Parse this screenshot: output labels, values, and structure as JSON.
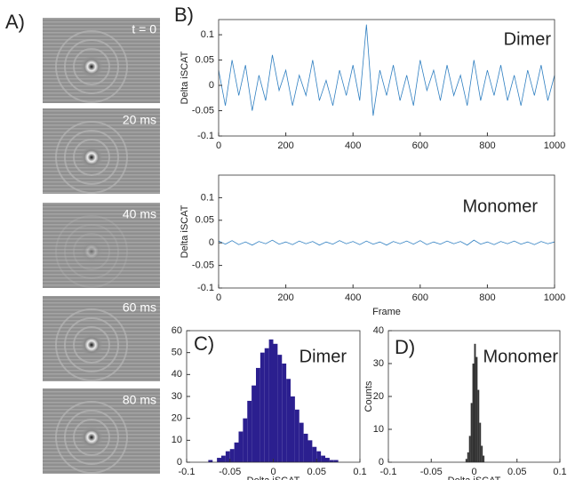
{
  "panel_a": {
    "label": "A)",
    "frames": [
      "t = 0",
      "20 ms",
      "40 ms",
      "60 ms",
      "80 ms"
    ]
  },
  "chart_data": [
    {
      "type": "line",
      "panel_label": "B)",
      "annotation": "Dimer",
      "y_label": "Delta iSCAT",
      "color": "#2f7fc1",
      "x": [
        0,
        20,
        40,
        60,
        80,
        100,
        120,
        140,
        160,
        180,
        200,
        220,
        240,
        260,
        280,
        300,
        320,
        340,
        360,
        380,
        400,
        420,
        440,
        460,
        480,
        500,
        520,
        540,
        560,
        580,
        600,
        620,
        640,
        660,
        680,
        700,
        720,
        740,
        760,
        780,
        800,
        820,
        840,
        860,
        880,
        900,
        920,
        940,
        960,
        980,
        1000
      ],
      "values": [
        0.03,
        -0.04,
        0.05,
        -0.02,
        0.04,
        -0.05,
        0.02,
        -0.03,
        0.06,
        -0.01,
        0.03,
        -0.04,
        0.02,
        -0.02,
        0.05,
        -0.03,
        0.01,
        -0.04,
        0.03,
        -0.02,
        0.04,
        -0.03,
        0.12,
        -0.06,
        0.03,
        -0.02,
        0.04,
        -0.03,
        0.02,
        -0.04,
        0.05,
        -0.01,
        0.03,
        -0.03,
        0.04,
        -0.02,
        0.02,
        -0.04,
        0.05,
        -0.03,
        0.03,
        -0.02,
        0.04,
        -0.03,
        0.02,
        -0.04,
        0.03,
        -0.02,
        0.04,
        -0.03,
        0.02
      ],
      "xlim": [
        0,
        1000
      ],
      "xticks": [
        0,
        200,
        400,
        600,
        800,
        1000
      ],
      "ylim": [
        -0.1,
        0.13
      ],
      "yticks": [
        -0.1,
        -0.05,
        0,
        0.05,
        0.1
      ]
    },
    {
      "type": "line",
      "annotation": "Monomer",
      "y_label": "Delta iSCAT",
      "x_label": "Frame",
      "color": "#2f7fc1",
      "x": [
        0,
        20,
        40,
        60,
        80,
        100,
        120,
        140,
        160,
        180,
        200,
        220,
        240,
        260,
        280,
        300,
        320,
        340,
        360,
        380,
        400,
        420,
        440,
        460,
        480,
        500,
        520,
        540,
        560,
        580,
        600,
        620,
        640,
        660,
        680,
        700,
        720,
        740,
        760,
        780,
        800,
        820,
        840,
        860,
        880,
        900,
        920,
        940,
        960,
        980,
        1000
      ],
      "values": [
        0.004,
        -0.003,
        0.005,
        -0.004,
        0.002,
        -0.005,
        0.003,
        -0.002,
        0.006,
        -0.003,
        0.002,
        -0.004,
        0.004,
        -0.002,
        0.003,
        -0.005,
        0.002,
        -0.003,
        0.005,
        -0.002,
        0.003,
        -0.004,
        0.004,
        -0.003,
        0.002,
        -0.005,
        0.003,
        -0.002,
        0.004,
        -0.003,
        0.005,
        -0.004,
        0.002,
        -0.003,
        0.004,
        -0.002,
        0.003,
        -0.005,
        0.006,
        -0.003,
        0.002,
        -0.004,
        0.003,
        -0.002,
        0.004,
        -0.003,
        0.002,
        -0.004,
        0.003,
        -0.002,
        0.002
      ],
      "xlim": [
        0,
        1000
      ],
      "xticks": [
        0,
        200,
        400,
        600,
        800,
        1000
      ],
      "ylim": [
        -0.1,
        0.15
      ],
      "yticks": [
        -0.1,
        -0.05,
        0,
        0.05,
        0.1
      ]
    },
    {
      "type": "histogram",
      "panel_label": "C)",
      "annotation": "Dimer",
      "x_label": "Delta iSCAT",
      "color": "#2b1f8f",
      "bins": [
        -0.075,
        -0.07,
        -0.065,
        -0.06,
        -0.055,
        -0.05,
        -0.045,
        -0.04,
        -0.035,
        -0.03,
        -0.025,
        -0.02,
        -0.015,
        -0.01,
        -0.005,
        0,
        0.005,
        0.01,
        0.015,
        0.02,
        0.025,
        0.03,
        0.035,
        0.04,
        0.045,
        0.05,
        0.055,
        0.06,
        0.065,
        0.07,
        0.075
      ],
      "values": [
        1,
        0,
        2,
        3,
        5,
        6,
        9,
        14,
        20,
        28,
        35,
        43,
        50,
        52,
        56,
        54,
        49,
        45,
        38,
        30,
        24,
        18,
        13,
        10,
        7,
        5,
        3,
        2,
        1,
        1
      ],
      "xlim": [
        -0.1,
        0.1
      ],
      "xticks": [
        -0.1,
        -0.05,
        0,
        0.05,
        0.1
      ],
      "ylim": [
        0,
        60
      ],
      "yticks": [
        0,
        10,
        20,
        30,
        40,
        50,
        60
      ]
    },
    {
      "type": "histogram",
      "panel_label": "D)",
      "annotation": "Monomer",
      "x_label": "Delta iSCAT",
      "y_label": "Counts",
      "color": "#333333",
      "bins": [
        -0.01,
        -0.008,
        -0.006,
        -0.004,
        -0.002,
        0,
        0.002,
        0.004,
        0.006,
        0.008,
        0.01,
        0.012
      ],
      "values": [
        1,
        3,
        8,
        18,
        30,
        36,
        32,
        22,
        12,
        5,
        2
      ],
      "xlim": [
        -0.1,
        0.1
      ],
      "xticks": [
        -0.1,
        -0.05,
        0,
        0.05,
        0.1
      ],
      "ylim": [
        0,
        40
      ],
      "yticks": [
        0,
        10,
        20,
        30,
        40
      ]
    }
  ]
}
